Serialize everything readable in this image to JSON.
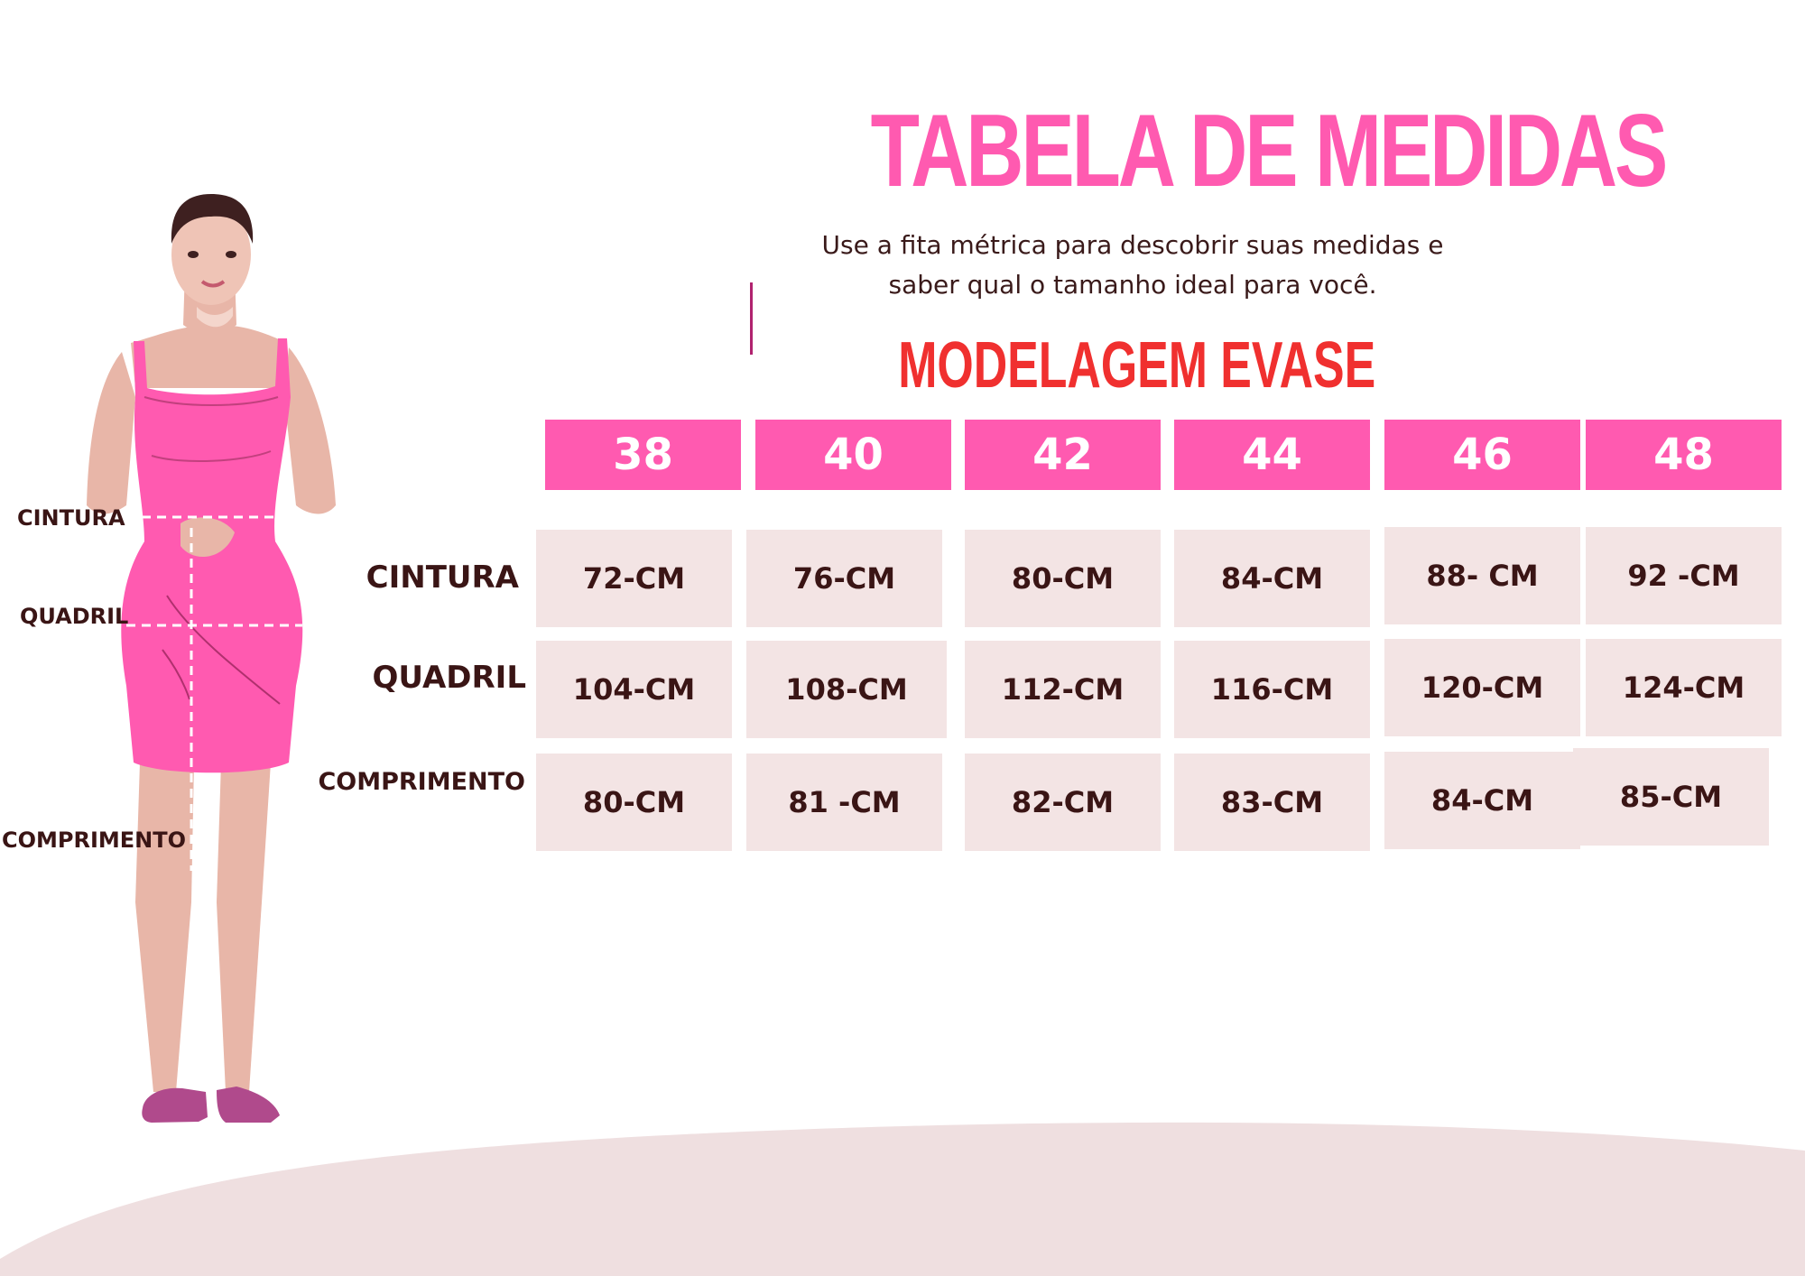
{
  "title": "TABELA DE MEDIDAS",
  "subtitle_line1": "Use a fita métrica para descobrir suas medidas e",
  "subtitle_line2": "saber qual o tamanho ideal para você.",
  "model_title": "MODELAGEM EVASE",
  "sizes": [
    "38",
    "40",
    "42",
    "44",
    "46",
    "48"
  ],
  "rows": [
    {
      "label": "CINTURA",
      "values": [
        "72-CM",
        "76-CM",
        "80-CM",
        "84-CM",
        "88- CM",
        "92 -CM"
      ]
    },
    {
      "label": "QUADRIL",
      "values": [
        "104-CM",
        "108-CM",
        "112-CM",
        "116-CM",
        "120-CM",
        "124-CM"
      ]
    },
    {
      "label": "COMPRIMENTO",
      "values": [
        "80-CM",
        "81 -CM",
        "82-CM",
        "83-CM",
        "84-CM",
        "85-CM"
      ]
    }
  ],
  "figure_labels": {
    "waist": "CINTURA",
    "hip": "QUADRIL",
    "length": "COMPRIMENTO"
  },
  "colors": {
    "pink": "#ff5ab0",
    "red": "#f0302f",
    "cell": "#f3e4e4",
    "text": "#3a1515",
    "dress": "#ff5ab0",
    "skin": "#e8b6a8",
    "shoes": "#b04a8c"
  }
}
